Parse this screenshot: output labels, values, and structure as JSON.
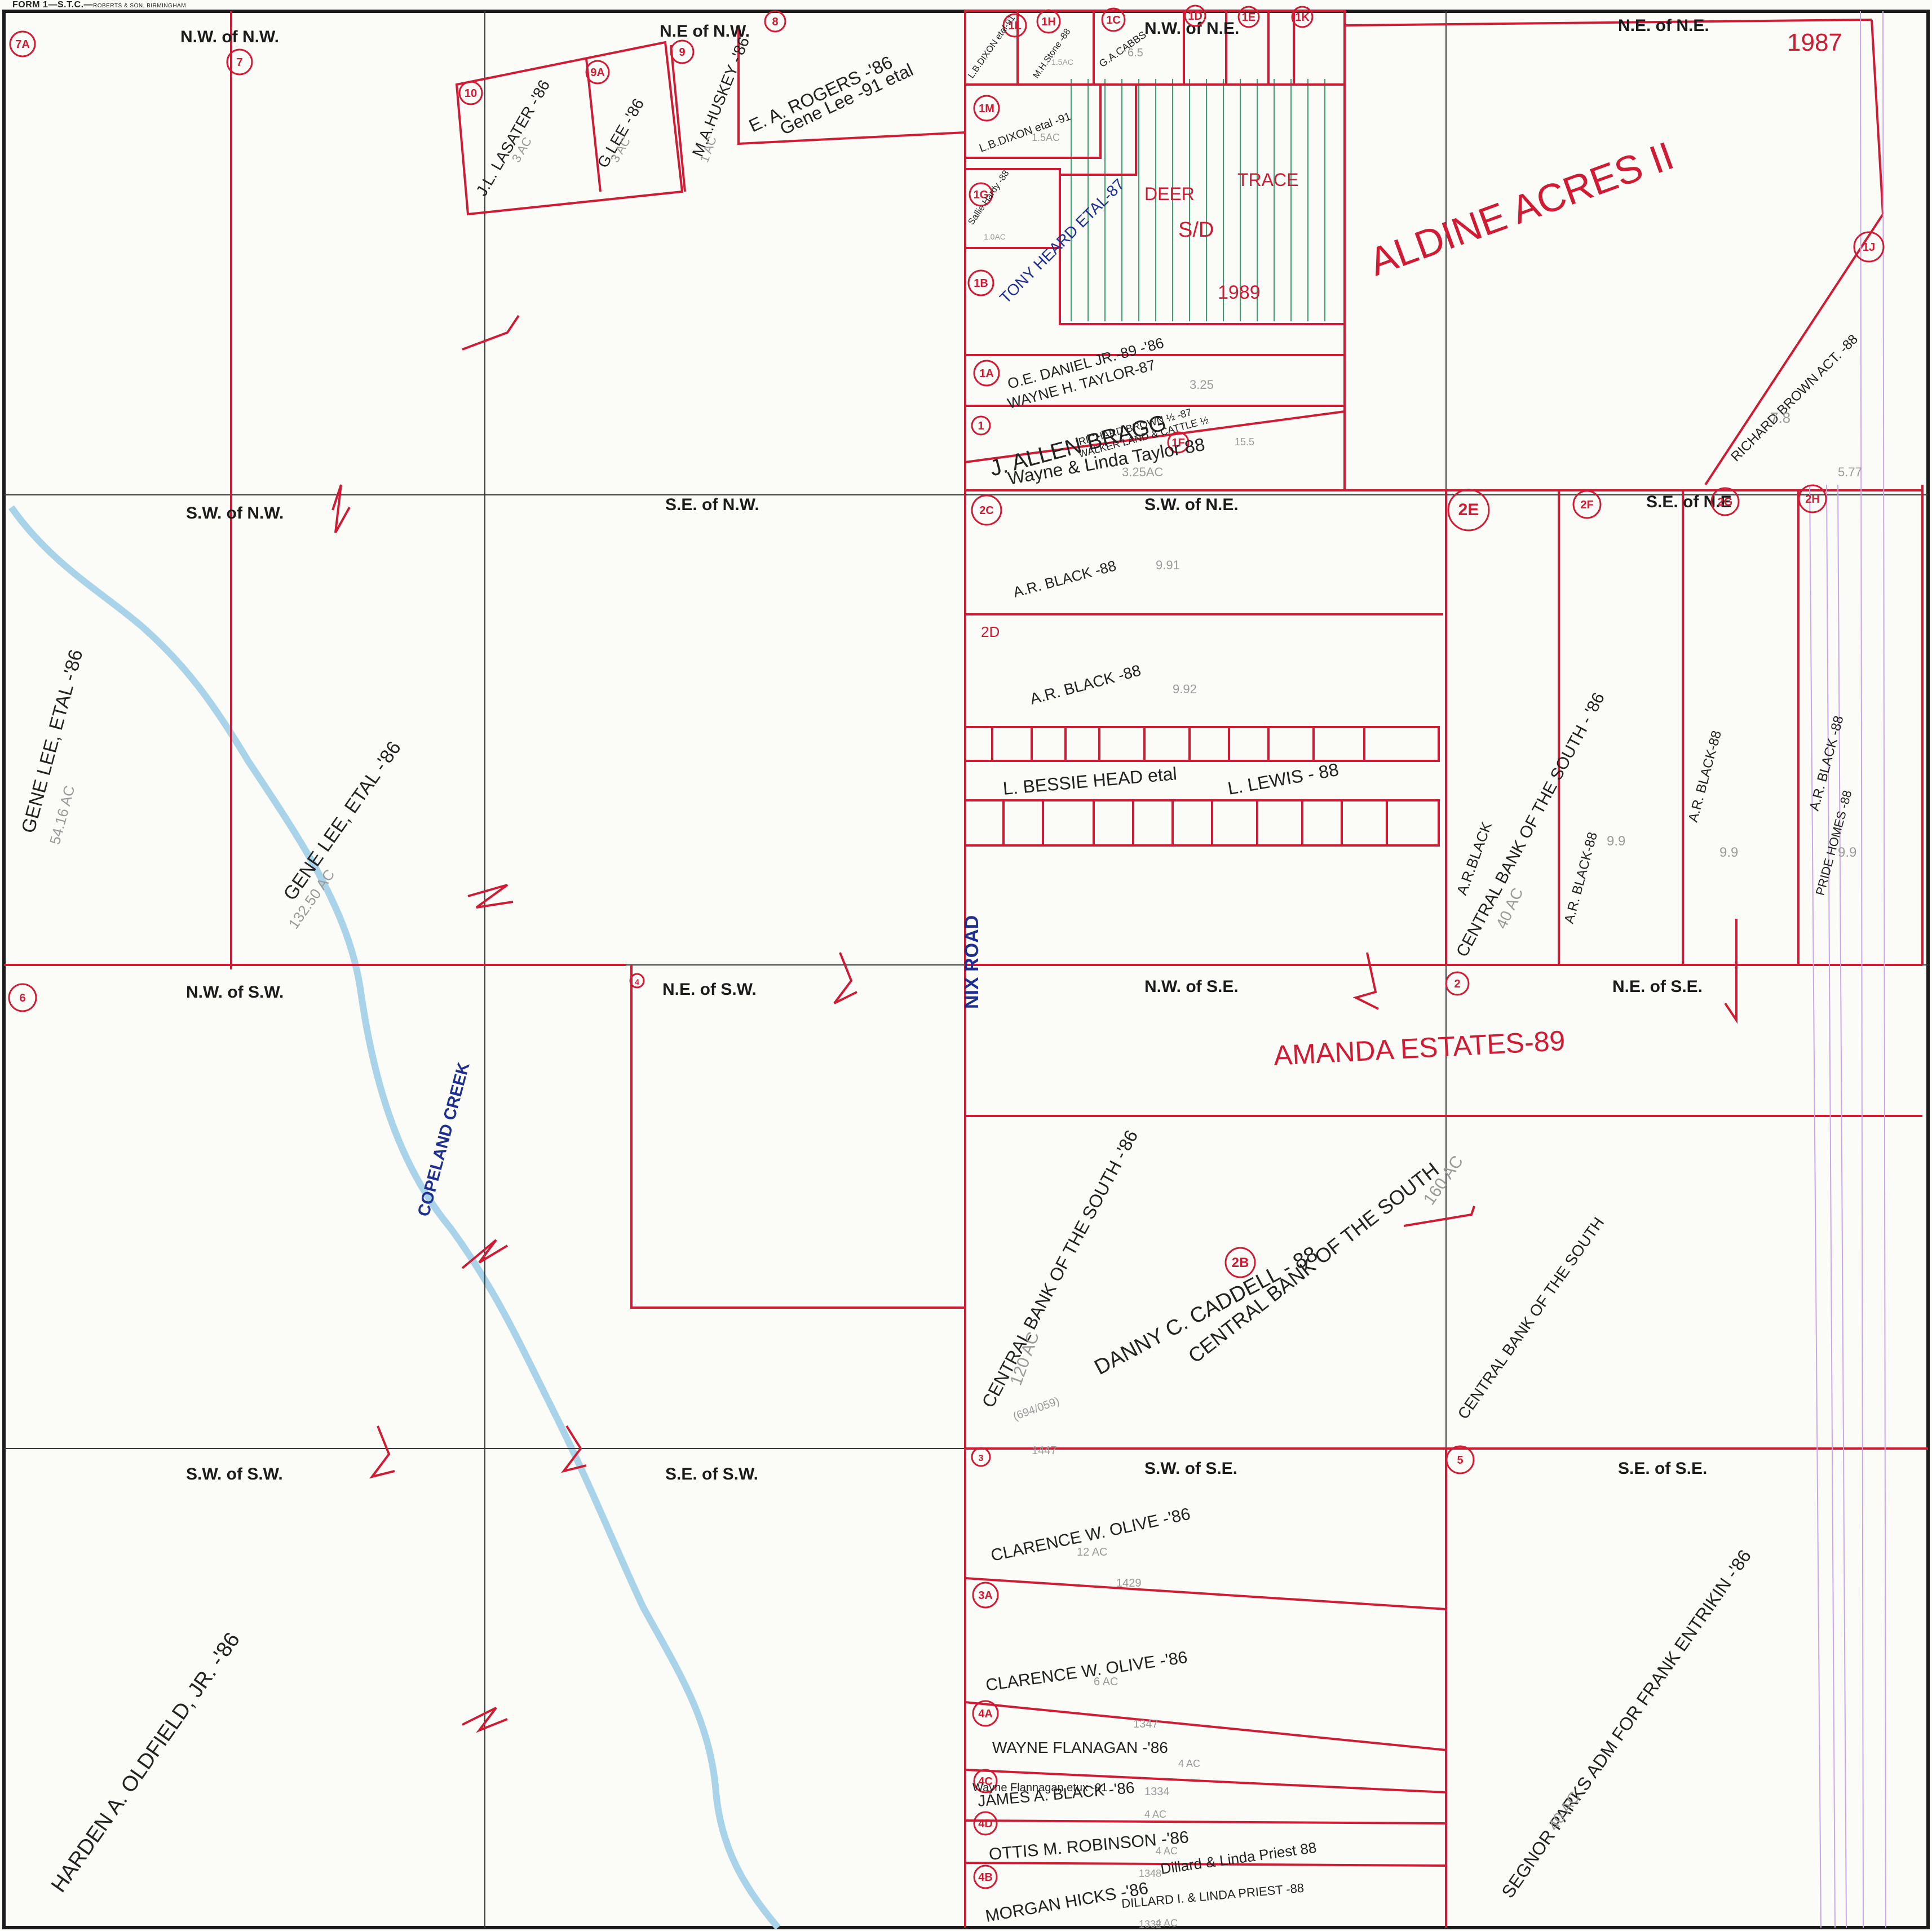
{
  "form": {
    "title": "FORM 1—S.T.C.—",
    "publisher": "ROBERTS & SON, BIRMINGHAM"
  },
  "quarters": {
    "nw_nw": "N.W. of N.W.",
    "ne_nw": "N.E of N.W.",
    "nw_ne": "N.W. of N.E.",
    "ne_ne": "N.E. of N.E.",
    "sw_nw": "S.W. of N.W.",
    "se_nw": "S.E. of N.W.",
    "sw_ne": "S.W. of N.E.",
    "se_ne": "S.E. of N.E",
    "nw_sw": "N.W. of S.W.",
    "ne_sw": "N.E. of S.W.",
    "nw_se": "N.W. of S.E.",
    "ne_se": "N.E. of S.E.",
    "sw_sw": "S.W. of S.W.",
    "se_sw": "S.E. of S.W.",
    "sw_se": "S.W. of S.E.",
    "se_se": "S.E. of S.E."
  },
  "parcel_numbers": {
    "p7a": "7A",
    "p7": "7",
    "p8": "8",
    "p9": "9",
    "p9a": "9A",
    "p10": "10",
    "p1l": "1L",
    "p1h": "1H",
    "p1c": "1C",
    "p1d": "1D",
    "p1e": "1E",
    "p1k": "1K",
    "p1m": "1M",
    "p1g": "1G",
    "p1b": "1B",
    "p1a": "1A",
    "p1": "1",
    "p1f": "1F",
    "p1j": "1J",
    "p2c": "2C",
    "p2e": "2E",
    "p2f": "2F",
    "p2g": "2G",
    "p2h": "2H",
    "p6": "6",
    "p4": "4",
    "p2": "2",
    "p2b": "2B",
    "p3": "3",
    "p3a": "3A",
    "p4a": "4A",
    "p4c": "4C",
    "p4d": "4D",
    "p4b": "4B",
    "p5": "5"
  },
  "owners": {
    "lasater": "J.L. LASATER -'86",
    "glee": "G.LEE -'86",
    "huskey": "M.A.HUSKEY -'86",
    "rogers": "E. A. ROGERS -'86",
    "genelee91": "Gene Lee -91 etal",
    "dixon1l": "L.B.DIXON etal-91",
    "stone": "M.H.Stone -88",
    "cabbs": "G.A.CABBS",
    "dixon1m": "L.B.DIXON etal -91",
    "sallie": "Sallie Hardy -88",
    "heard": "TONY HEARD ETAL-87",
    "deer": "DEER",
    "trace": "TRACE",
    "sd": "S/D",
    "sd_year": "1989",
    "aldine": "ALDINE ACRES II",
    "aldine_year": "1987",
    "daniel": "O.E. DANIEL JR.-89 -'86",
    "wtaylor": "WAYNE H. TAYLOR-87",
    "bragg": "J. ALLEN BRAGG",
    "rbrown": "RICHARD BROWN ½ -87",
    "walker": "WALKER LAND & CATTLE ½",
    "wlt": "Wayne & Linda Taylor 88",
    "rbrown_acct": "RICHARD BROWN ACT. -88",
    "arblack1": "A.R. BLACK -88",
    "label_2d": "2D",
    "arblack2": "A.R. BLACK -88",
    "bessie": "L. BESSIE HEAD etal",
    "lewis": "L. LEWIS - 88",
    "arblack_2e": "A.R.BLACK",
    "cbs_2e": "CENTRAL BANK OF THE SOUTH - '86",
    "arblack_2f": "A.R. BLACK-88",
    "arblack_2g": "A.R. BLACK-88",
    "arblack_2h": "A.R. BLACK -88",
    "pride": "PRIDE HOMES -88",
    "nix": "NIX ROAD",
    "creek": "COPELAND CREEK",
    "genelee_etal": "GENE LEE, ETAL -'86",
    "genelee_etal2": "GENE LEE, ETAL -'86",
    "amanda": "AMANDA ESTATES-89",
    "cbs_2b_a": "CENTRAL BANK OF THE SOUTH -'86",
    "cbs_2b_b": "CENTRAL BANK OF THE SOUTH",
    "caddell": "DANNY C. CADDELL - 88",
    "cbs_ne_se": "CENTRAL BANK OF THE SOUTH",
    "olive1": "CLARENCE W. OLIVE -'86",
    "olive2": "CLARENCE W. OLIVE -'86",
    "flanagan": "WAYNE FLANAGAN -'86",
    "flanagan_etux": "Wayne Flannagan etux -91",
    "jablack": "JAMES A. BLACK -'86",
    "robinson": "OTTIS M. ROBINSON -'86",
    "priest1": "Dillard & Linda Priest 88",
    "hicks": "MORGAN HICKS -'86",
    "priest2": "DILLARD I. & LINDA PRIEST -88",
    "parks": "SEGNOR PARKS ADM FOR FRANK ENTRIKIN -'86",
    "oldfield": "HARDEN A. OLDFIELD, JR. -'86"
  },
  "acreage": {
    "a_lasater": "3 AC",
    "a_glee": "3 AC",
    "a_huskey": "1 AC",
    "a_dixon": "1.5AC",
    "a_stone": "1.5AC",
    "a_cabbs": "6.5",
    "a_sallie": "1.0AC",
    "a_daniel": "3.25",
    "a_brown": "15.5",
    "a_wlt": "3.25AC",
    "a_rbrown": "7.8",
    "a_2c": "9.91",
    "a_2d": "9.92",
    "a_2e": "40 AC",
    "a_2f": "9.9",
    "a_2g": "9.9",
    "a_2h": "9.9",
    "a_genelee": "54.16 AC",
    "a_genelee2": "132.50 AC",
    "a_2b": "120 AC",
    "a_2b_160": "160 AC",
    "a_olive1": "12 AC",
    "a_olive2": "6 AC",
    "a_flanagan": "4 AC",
    "a_black": "4 AC",
    "a_robinson": "4 AC",
    "a_hicks": "4 AC",
    "a_parks": "40 AC",
    "bk1": "1447",
    "bk2": "1429",
    "bk3": "1347",
    "bk4": "1334",
    "bk5": "1348",
    "bk6": "1332",
    "bk_2b": "(694/059)",
    "bk_cur": "5.77"
  },
  "colors": {
    "parcel_line": "#cf1b33",
    "grid_line": "#3a3a3a",
    "creek": "#a9d3e8",
    "road_text": "#1e2f8f",
    "hatch": "#3aa070"
  }
}
